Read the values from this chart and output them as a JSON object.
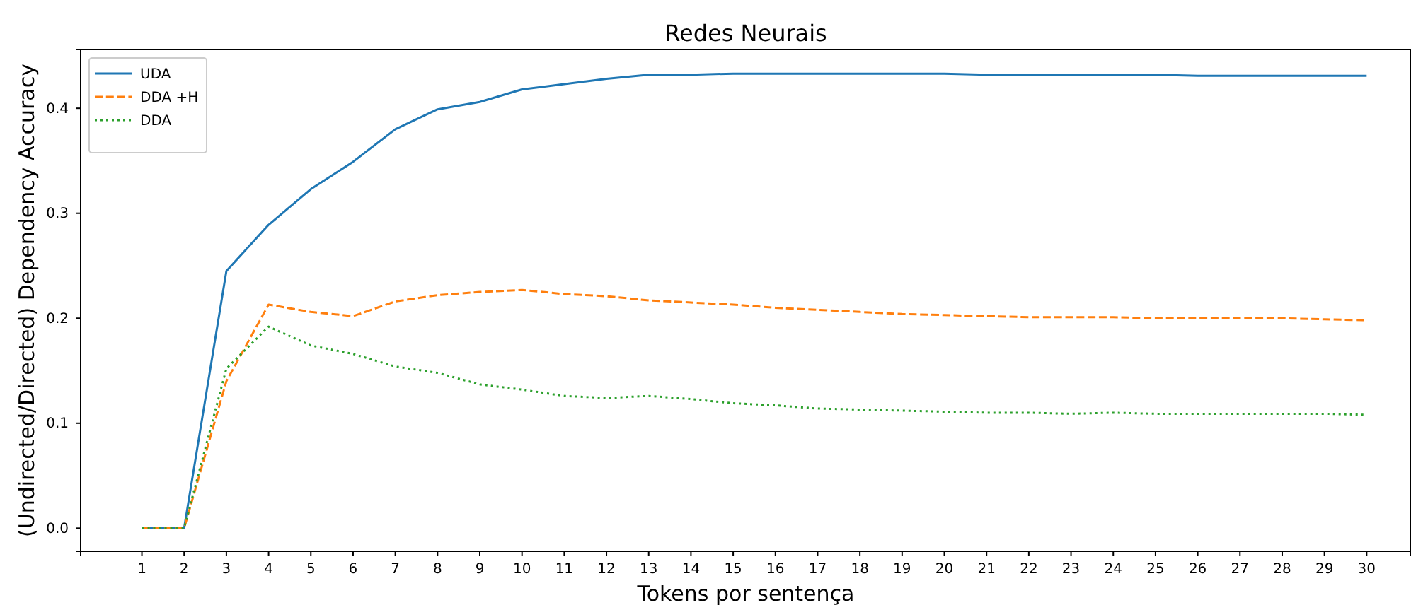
{
  "chart_data": {
    "type": "line",
    "title": "Redes Neurais",
    "xlabel": "Tokens por sentença",
    "ylabel": "(Undirected/Directed) Dependency Accuracy",
    "x": [
      1,
      2,
      3,
      4,
      5,
      6,
      7,
      8,
      9,
      10,
      11,
      12,
      13,
      14,
      15,
      16,
      17,
      18,
      19,
      20,
      21,
      22,
      23,
      24,
      25,
      26,
      27,
      28,
      29,
      30
    ],
    "series": [
      {
        "name": "UDA",
        "color": "#1f77b4",
        "line_style": "solid",
        "values": [
          0,
          0,
          0.245,
          0.289,
          0.323,
          0.349,
          0.38,
          0.399,
          0.406,
          0.418,
          0.423,
          0.428,
          0.432,
          0.432,
          0.433,
          0.433,
          0.433,
          0.433,
          0.433,
          0.433,
          0.432,
          0.432,
          0.432,
          0.432,
          0.432,
          0.431,
          0.431,
          0.431,
          0.431,
          0.431
        ]
      },
      {
        "name": "DDA +H",
        "color": "#ff7f0e",
        "line_style": "dashed",
        "values": [
          0,
          0,
          0.14,
          0.213,
          0.206,
          0.202,
          0.216,
          0.222,
          0.225,
          0.227,
          0.223,
          0.221,
          0.217,
          0.215,
          0.213,
          0.21,
          0.208,
          0.206,
          0.204,
          0.203,
          0.202,
          0.201,
          0.201,
          0.201,
          0.2,
          0.2,
          0.2,
          0.2,
          0.199,
          0.198
        ]
      },
      {
        "name": "DDA",
        "color": "#2ca02c",
        "line_style": "dotted",
        "values": [
          0,
          0,
          0.152,
          0.192,
          0.174,
          0.166,
          0.154,
          0.148,
          0.137,
          0.132,
          0.126,
          0.124,
          0.126,
          0.123,
          0.119,
          0.117,
          0.114,
          0.113,
          0.112,
          0.111,
          0.11,
          0.11,
          0.109,
          0.11,
          0.109,
          0.109,
          0.109,
          0.109,
          0.109,
          0.108
        ]
      }
    ],
    "xlim": [
      -0.45,
      31.05
    ],
    "xticks": [
      1,
      2,
      3,
      4,
      5,
      6,
      7,
      8,
      9,
      10,
      11,
      12,
      13,
      14,
      15,
      16,
      17,
      18,
      19,
      20,
      21,
      22,
      23,
      24,
      25,
      26,
      27,
      28,
      29,
      30
    ],
    "ylim": [
      -0.022,
      0.456
    ],
    "yticks": [
      {
        "value": 0,
        "label": "0.0"
      },
      {
        "value": 0.1,
        "label": "0.1"
      },
      {
        "value": 0.2,
        "label": "0.2"
      },
      {
        "value": 0.3,
        "label": "0.3"
      },
      {
        "value": 0.4,
        "label": "0.4"
      }
    ],
    "grid": false,
    "legend": "top left",
    "marker": "none"
  }
}
